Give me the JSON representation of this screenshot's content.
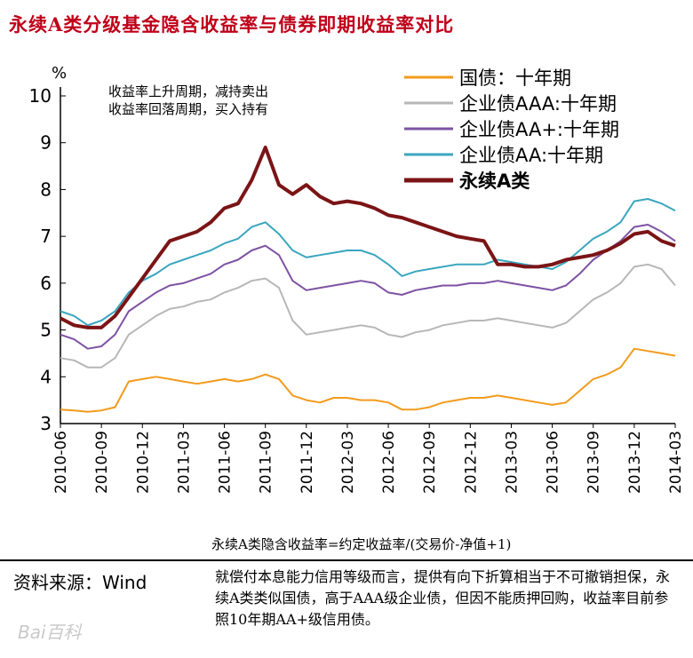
{
  "title": "永续A类分级基金隐含收益率与债券即期收益率对比",
  "source": "资料来源：Wind",
  "note": "就偿付本息能力信用等级而言，提供有向下折算相当于不可撤销担保，永续A类类似国债，高于AAA级企业债，但因不能质押回购，收益率目前参照10年期AA+级信用债。",
  "watermark": "Bai百科",
  "chart_data": {
    "type": "line",
    "ylabel": "%",
    "ylim": [
      3,
      10
    ],
    "yticks": [
      3,
      4,
      5,
      6,
      7,
      8,
      9,
      10
    ],
    "xtick_labels": [
      "2010-06",
      "2010-09",
      "2010-12",
      "2011-03",
      "2011-06",
      "2011-09",
      "2011-12",
      "2012-03",
      "2012-06",
      "2012-09",
      "2012-12",
      "2013-03",
      "2013-06",
      "2013-09",
      "2013-12",
      "2014-03"
    ],
    "xlim": [
      0,
      45
    ],
    "annotation_lines": [
      "收益率上升周期，减持卖出",
      "收益率回落周期，买入持有"
    ],
    "formula": "永续A类隐含收益率=约定收益率/(交易价-净值+1)",
    "legend_position": "top-right",
    "grid": false,
    "series": [
      {
        "name": "国债：十年期",
        "color": "#f29b1c",
        "width": 2,
        "x": [
          0,
          1,
          2,
          3,
          4,
          5,
          6,
          7,
          8,
          9,
          10,
          11,
          12,
          13,
          14,
          15,
          16,
          17,
          18,
          19,
          20,
          21,
          22,
          23,
          24,
          25,
          26,
          27,
          28,
          29,
          30,
          31,
          32,
          33,
          34,
          35,
          36,
          37,
          38,
          39,
          40,
          41,
          42,
          43,
          44,
          45
        ],
        "values": [
          3.3,
          3.28,
          3.25,
          3.28,
          3.35,
          3.9,
          3.95,
          4.0,
          3.95,
          3.9,
          3.85,
          3.9,
          3.95,
          3.9,
          3.95,
          4.05,
          3.95,
          3.6,
          3.5,
          3.45,
          3.55,
          3.55,
          3.5,
          3.5,
          3.45,
          3.3,
          3.3,
          3.35,
          3.45,
          3.5,
          3.55,
          3.55,
          3.6,
          3.55,
          3.5,
          3.45,
          3.4,
          3.45,
          3.7,
          3.95,
          4.05,
          4.2,
          4.6,
          4.55,
          4.5,
          4.45
        ]
      },
      {
        "name": "企业债AAA:十年期",
        "color": "#b7b7b7",
        "width": 2,
        "x": [
          0,
          1,
          2,
          3,
          4,
          5,
          6,
          7,
          8,
          9,
          10,
          11,
          12,
          13,
          14,
          15,
          16,
          17,
          18,
          19,
          20,
          21,
          22,
          23,
          24,
          25,
          26,
          27,
          28,
          29,
          30,
          31,
          32,
          33,
          34,
          35,
          36,
          37,
          38,
          39,
          40,
          41,
          42,
          43,
          44,
          45
        ],
        "values": [
          4.4,
          4.35,
          4.2,
          4.2,
          4.4,
          4.9,
          5.1,
          5.3,
          5.45,
          5.5,
          5.6,
          5.65,
          5.8,
          5.9,
          6.05,
          6.1,
          5.9,
          5.2,
          4.9,
          4.95,
          5.0,
          5.05,
          5.1,
          5.05,
          4.9,
          4.85,
          4.95,
          5.0,
          5.1,
          5.15,
          5.2,
          5.2,
          5.25,
          5.2,
          5.15,
          5.1,
          5.05,
          5.15,
          5.4,
          5.65,
          5.8,
          6.0,
          6.35,
          6.4,
          6.3,
          5.95
        ]
      },
      {
        "name": "企业债AA+:十年期",
        "color": "#7d52a3",
        "width": 2,
        "x": [
          0,
          1,
          2,
          3,
          4,
          5,
          6,
          7,
          8,
          9,
          10,
          11,
          12,
          13,
          14,
          15,
          16,
          17,
          18,
          19,
          20,
          21,
          22,
          23,
          24,
          25,
          26,
          27,
          28,
          29,
          30,
          31,
          32,
          33,
          34,
          35,
          36,
          37,
          38,
          39,
          40,
          41,
          42,
          43,
          44,
          45
        ],
        "values": [
          4.9,
          4.8,
          4.6,
          4.65,
          4.9,
          5.4,
          5.6,
          5.8,
          5.95,
          6.0,
          6.1,
          6.2,
          6.4,
          6.5,
          6.7,
          6.8,
          6.6,
          6.05,
          5.85,
          5.9,
          5.95,
          6.0,
          6.05,
          6.0,
          5.8,
          5.75,
          5.85,
          5.9,
          5.95,
          5.95,
          6.0,
          6.0,
          6.05,
          6.0,
          5.95,
          5.9,
          5.85,
          5.95,
          6.2,
          6.5,
          6.7,
          6.9,
          7.2,
          7.25,
          7.1,
          6.9
        ]
      },
      {
        "name": "企业债AA:十年期",
        "color": "#3aa6bf",
        "width": 2,
        "x": [
          0,
          1,
          2,
          3,
          4,
          5,
          6,
          7,
          8,
          9,
          10,
          11,
          12,
          13,
          14,
          15,
          16,
          17,
          18,
          19,
          20,
          21,
          22,
          23,
          24,
          25,
          26,
          27,
          28,
          29,
          30,
          31,
          32,
          33,
          34,
          35,
          36,
          37,
          38,
          39,
          40,
          41,
          42,
          43,
          44,
          45
        ],
        "values": [
          5.4,
          5.3,
          5.1,
          5.2,
          5.4,
          5.8,
          6.05,
          6.2,
          6.4,
          6.5,
          6.6,
          6.7,
          6.85,
          6.95,
          7.2,
          7.3,
          7.05,
          6.7,
          6.55,
          6.6,
          6.65,
          6.7,
          6.7,
          6.6,
          6.4,
          6.15,
          6.25,
          6.3,
          6.35,
          6.4,
          6.4,
          6.4,
          6.5,
          6.45,
          6.4,
          6.35,
          6.3,
          6.45,
          6.7,
          6.95,
          7.1,
          7.3,
          7.75,
          7.8,
          7.7,
          7.55
        ]
      },
      {
        "name": "永续A类",
        "color": "#7b1416",
        "width": 4,
        "x": [
          0,
          1,
          2,
          3,
          4,
          5,
          6,
          7,
          8,
          9,
          10,
          11,
          12,
          13,
          14,
          15,
          16,
          17,
          18,
          19,
          20,
          21,
          22,
          23,
          24,
          25,
          26,
          27,
          28,
          29,
          30,
          31,
          32,
          33,
          34,
          35,
          36,
          37,
          38,
          39,
          40,
          41,
          42,
          43,
          44,
          45
        ],
        "values": [
          5.25,
          5.1,
          5.05,
          5.05,
          5.3,
          5.7,
          6.1,
          6.5,
          6.9,
          7.0,
          7.1,
          7.3,
          7.6,
          7.7,
          8.2,
          8.9,
          8.1,
          7.9,
          8.1,
          7.85,
          7.7,
          7.75,
          7.7,
          7.6,
          7.45,
          7.4,
          7.3,
          7.2,
          7.1,
          7.0,
          6.95,
          6.9,
          6.4,
          6.4,
          6.35,
          6.35,
          6.4,
          6.5,
          6.55,
          6.6,
          6.7,
          6.85,
          7.05,
          7.1,
          6.9,
          6.8
        ]
      }
    ]
  }
}
